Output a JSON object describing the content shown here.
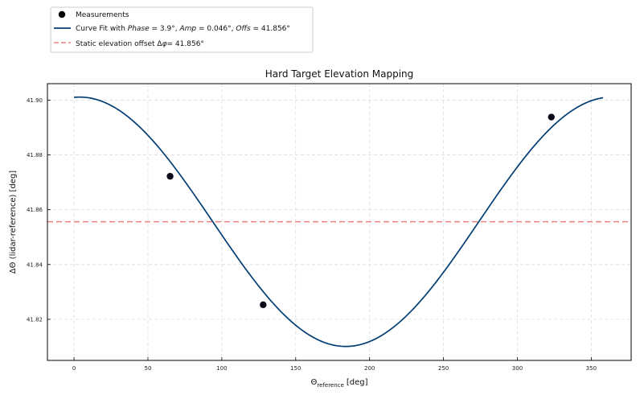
{
  "chart_data": {
    "type": "line",
    "title": "Hard Target Elevation Mapping",
    "xlabel_main": "Θ",
    "xlabel_sub": "reference",
    "xlabel_unit": "[deg]",
    "ylabel": "ΔΘ (lidar-reference) [deg]",
    "xlim": [
      -18,
      377
    ],
    "ylim": [
      41.805,
      41.906
    ],
    "xticks": [
      0,
      50,
      100,
      150,
      200,
      250,
      300,
      350
    ],
    "yticks": [
      41.82,
      41.84,
      41.86,
      41.88,
      41.9
    ],
    "ytick_labels": [
      "41.82",
      "41.84",
      "41.86",
      "41.88",
      "41.90"
    ],
    "grid": true,
    "legend_placement": "above-left",
    "measurements": {
      "name": "Measurements",
      "points": [
        {
          "x": 65,
          "y": 41.8722
        },
        {
          "x": 128,
          "y": 41.8253
        },
        {
          "x": 323,
          "y": 41.8938
        }
      ],
      "color": "#0a0a1a"
    },
    "fit": {
      "legend_parts": [
        "Curve Fit with ",
        "Phase",
        " = 3.9°, ",
        "Amp",
        " = 0.046°, ",
        "Offs",
        " = 41.856°"
      ],
      "phase_deg": 3.9,
      "amp": 0.0455,
      "offs": 41.8556,
      "x_range": [
        0,
        358
      ],
      "color": "#023e73"
    },
    "static_offset": {
      "legend_parts": [
        "Static elevation offset Δ",
        "φ",
        "= 41.856°"
      ],
      "value": 41.8556,
      "color": "#f08080"
    }
  }
}
